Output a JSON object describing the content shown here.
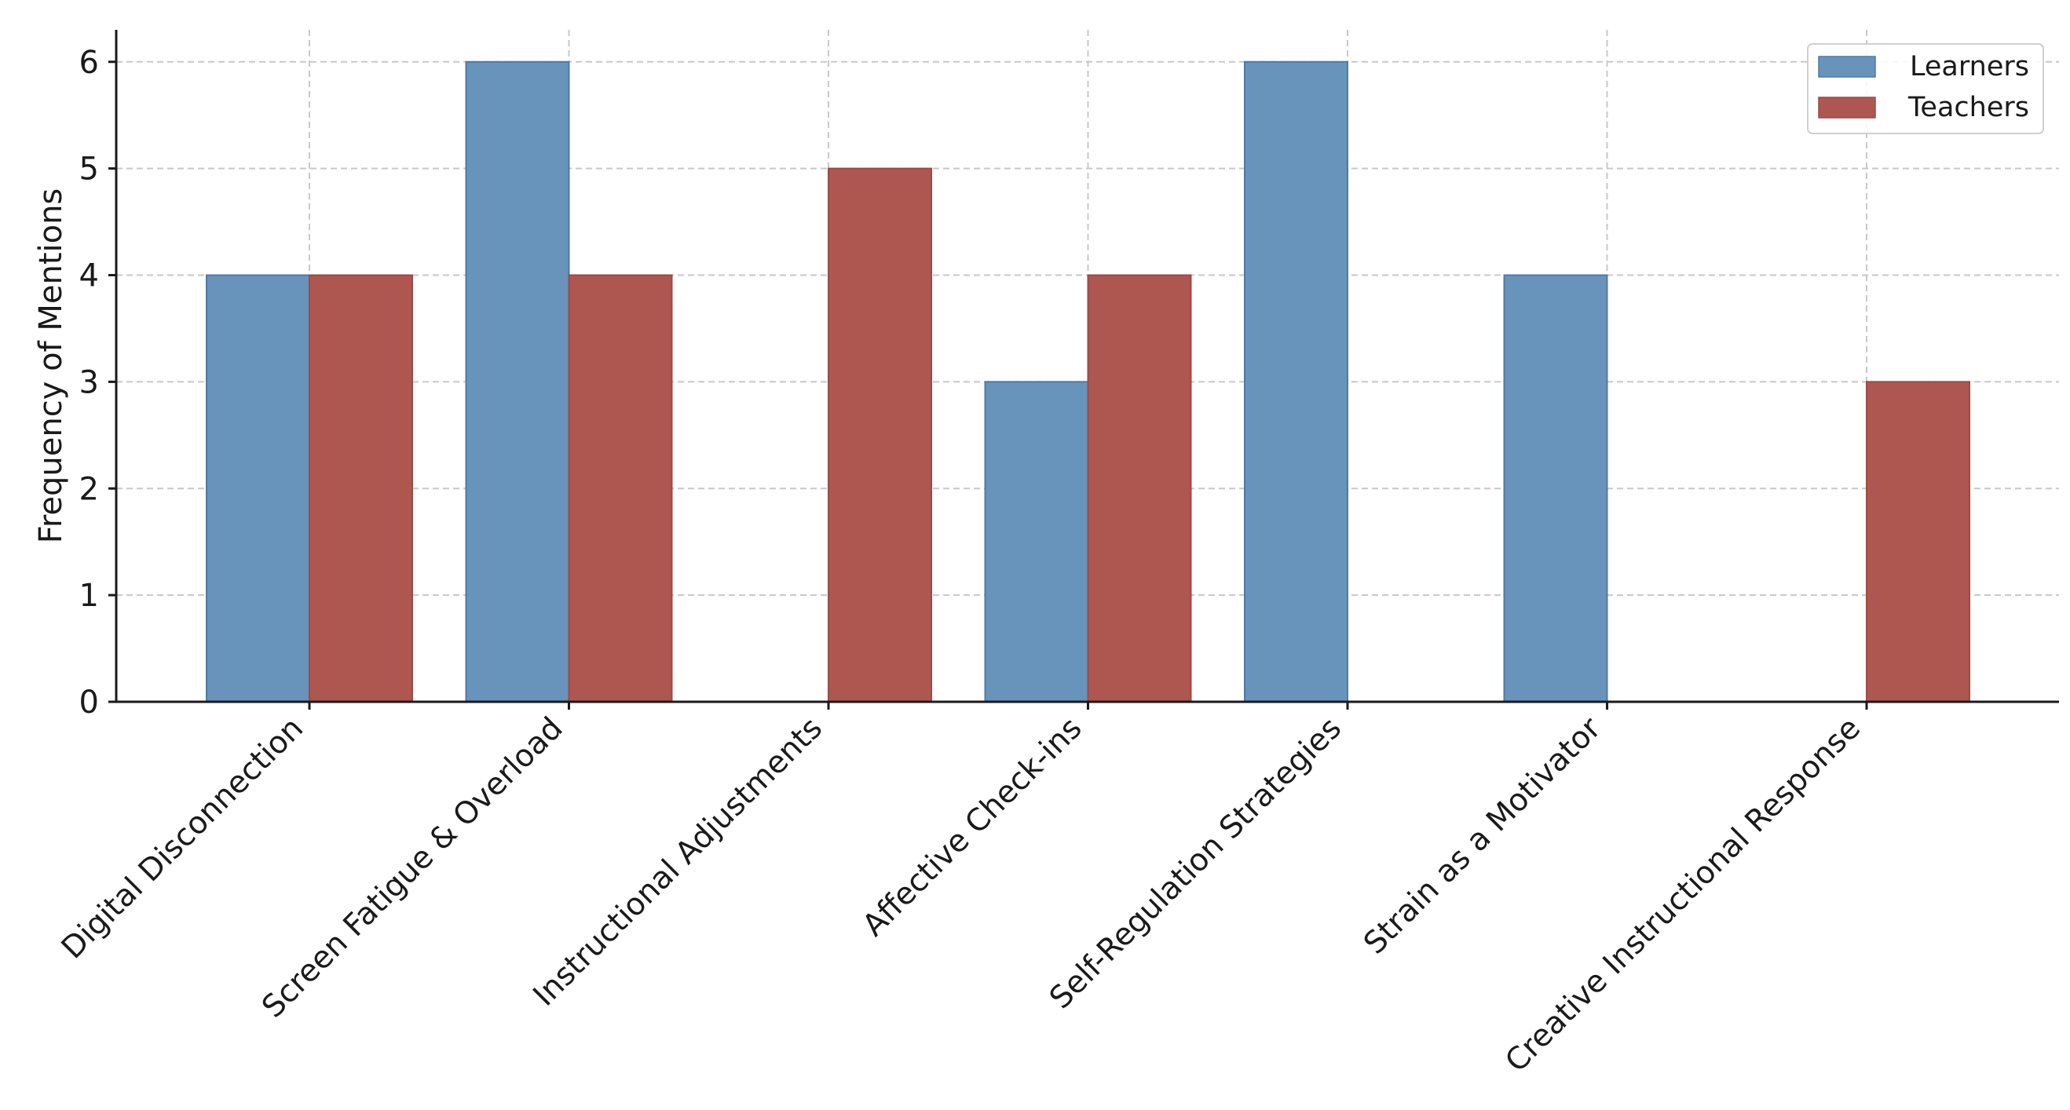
{
  "chart_data": {
    "type": "bar",
    "title": "",
    "xlabel": "",
    "ylabel": "Frequency of Mentions",
    "ylim": [
      0,
      6.3
    ],
    "yticks": [
      0,
      1,
      2,
      3,
      4,
      5,
      6
    ],
    "grid": true,
    "legend_position": "top-right",
    "categories": [
      "Digital Disconnection",
      "Screen Fatigue & Overload",
      "Instructional Adjustments",
      "Affective Check-ins",
      "Self-Regulation Strategies",
      "Strain as a Motivator",
      "Creative Instructional Response"
    ],
    "series": [
      {
        "name": "Learners",
        "color": "#6893ba",
        "edge": "#4f79a8",
        "values": [
          4,
          6,
          0,
          3,
          6,
          4,
          0
        ]
      },
      {
        "name": "Teachers",
        "color": "#ae5751",
        "edge": "#9c4a45",
        "values": [
          4,
          4,
          5,
          4,
          0,
          0,
          3
        ]
      }
    ]
  }
}
